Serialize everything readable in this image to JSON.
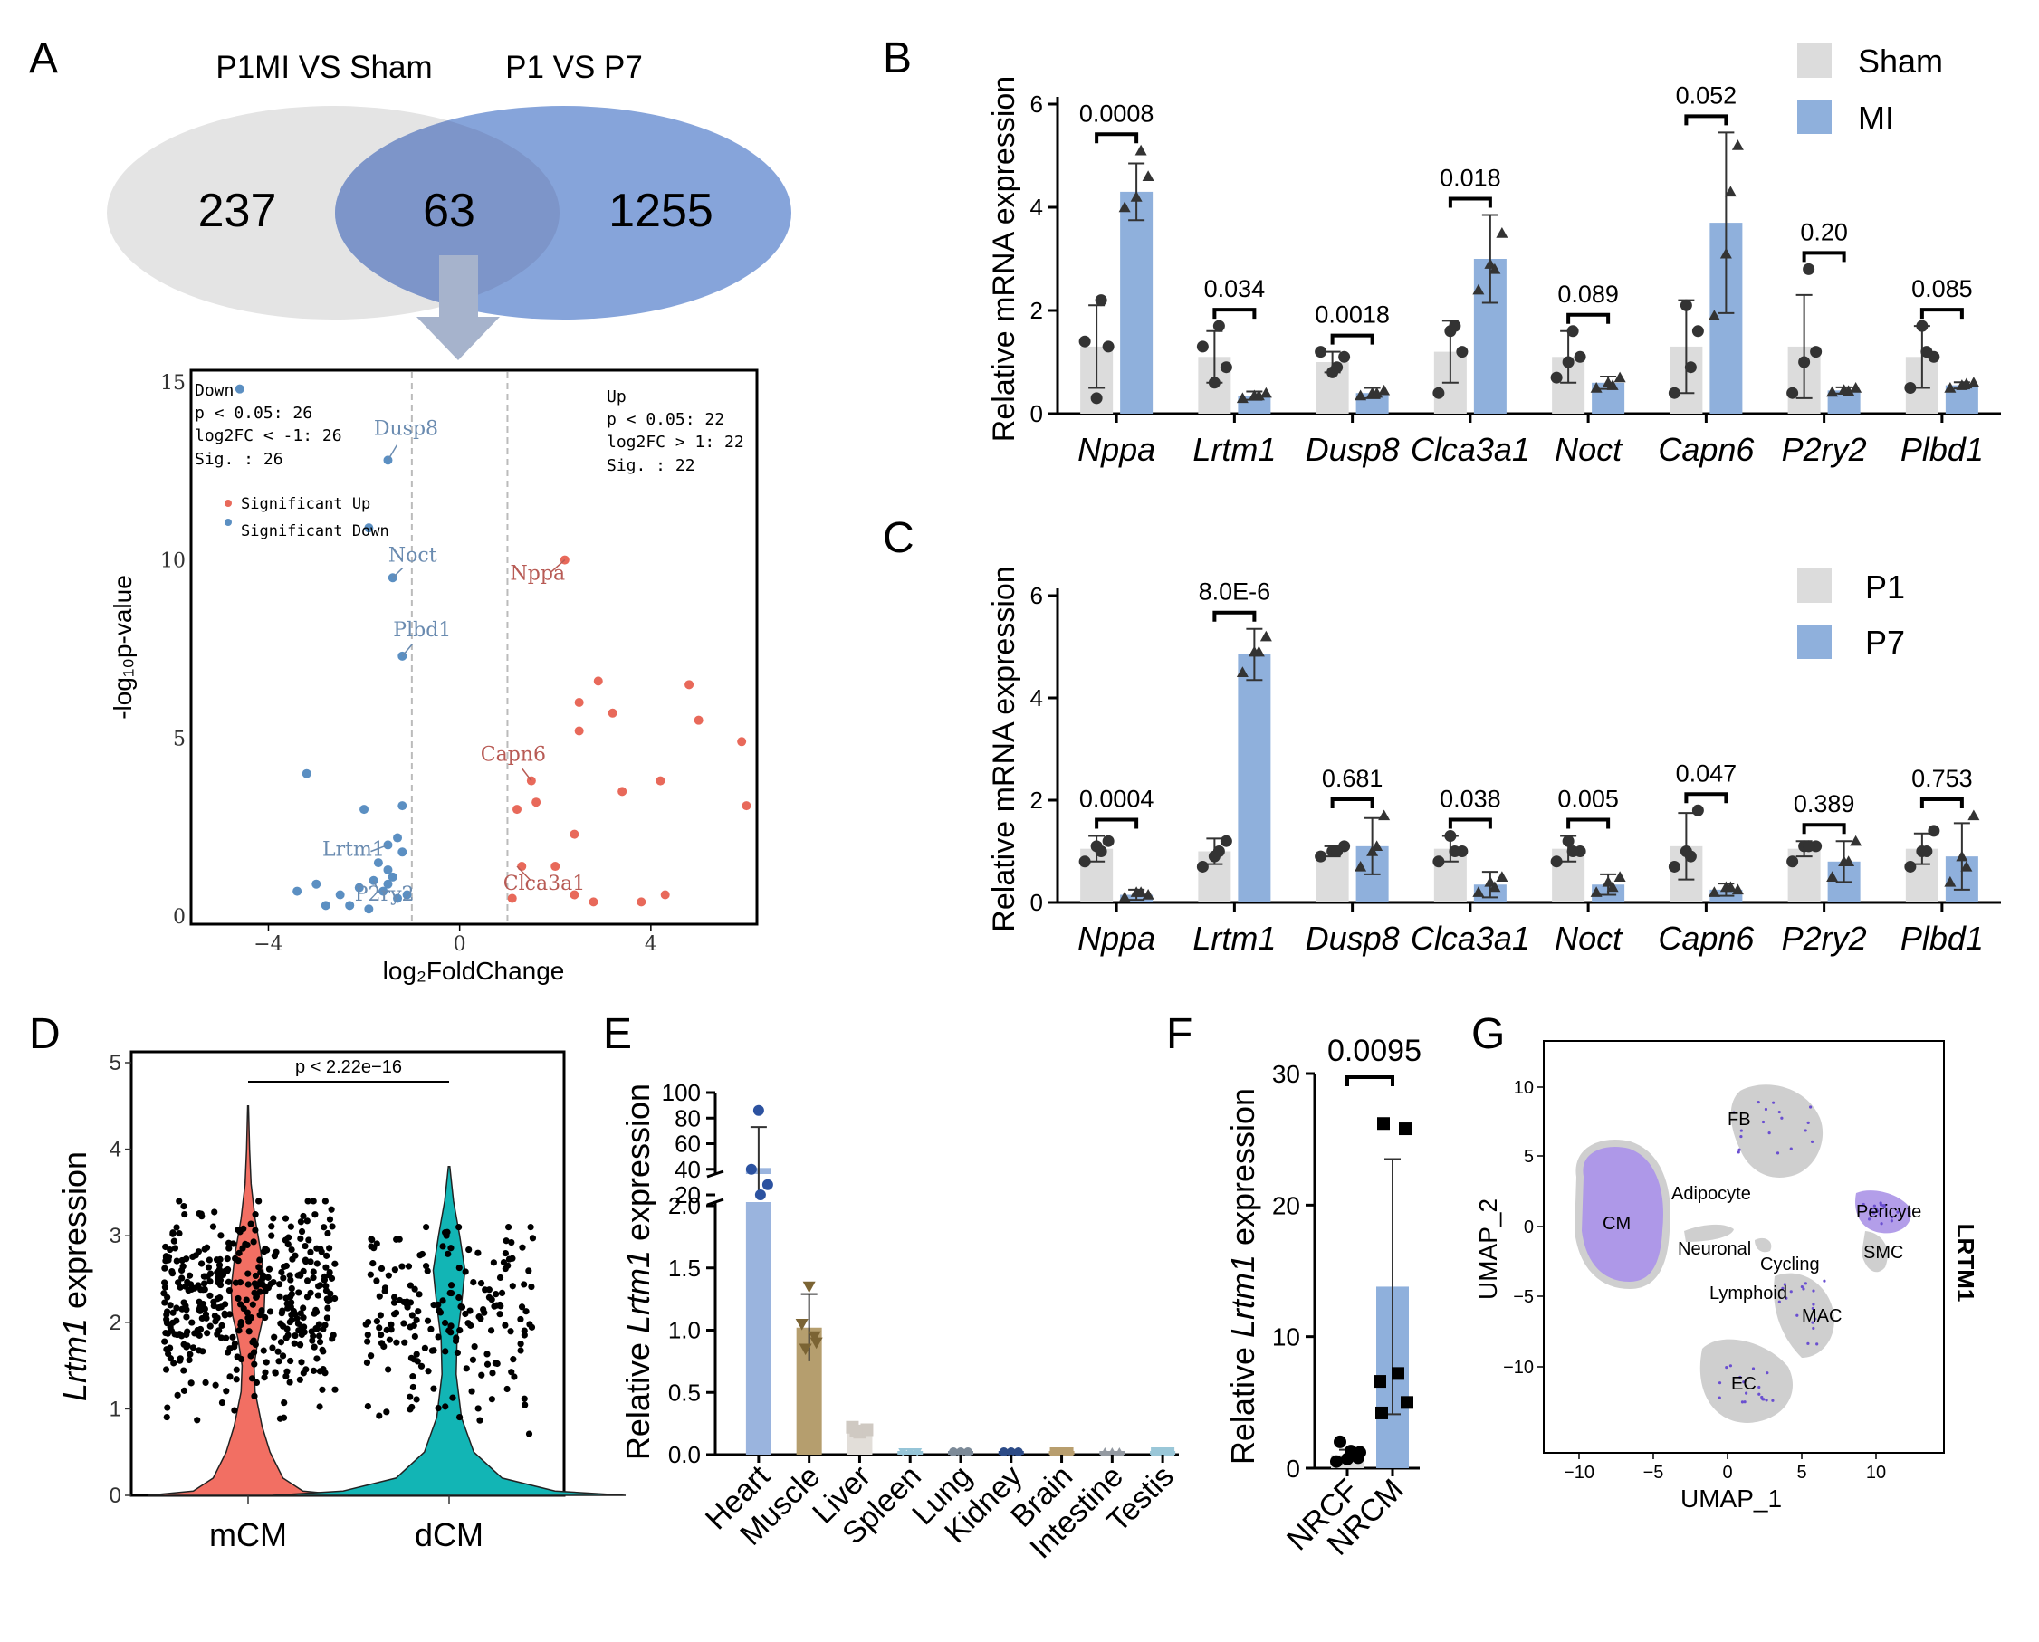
{
  "colors": {
    "grey_bar": "#dcdcdc",
    "blue_bar": "#8fb0dc",
    "venn_left": "#e4e4e4",
    "venn_right": "#7f9fd8",
    "venn_overlap": "#7d95c9",
    "arrow": "#a6b3cc",
    "volcano_up": "#e8695a",
    "volcano_down": "#5b8fc2",
    "volcano_label_up": "#b85b55",
    "volcano_label_down": "#6a8bb0",
    "violin_mcm": "#f26f63",
    "violin_dcm": "#12b5b5",
    "umap_grey": "#cfcfcf",
    "umap_purple": "#9a7ee2"
  },
  "panel_letters": [
    "A",
    "B",
    "C",
    "D",
    "E",
    "F",
    "G"
  ],
  "chart_data": [
    {
      "panel": "A-venn",
      "type": "other",
      "sets": [
        {
          "name": "P1MI VS Sham",
          "unique": "237"
        },
        {
          "name": "P1 VS P7",
          "unique": "1255"
        }
      ],
      "overlap": "63"
    },
    {
      "panel": "A-volcano",
      "type": "scatter",
      "xlabel": "log₂FoldChange",
      "ylabel": "-log₁₀p-value",
      "xlim": [
        -5.6,
        6.2
      ],
      "ylim": [
        -0.2,
        15.3
      ],
      "x_ticks": [
        -4,
        0,
        4
      ],
      "x_tick_labels": [
        "−4",
        "0",
        "4"
      ],
      "y_ticks": [
        0,
        5,
        10,
        15
      ],
      "y_tick_labels": [
        "0",
        "5",
        "10",
        "15"
      ],
      "threshold_lines_x": [
        -1,
        1
      ],
      "down_box": [
        "Down",
        "p < 0.05: 26",
        "log2FC < -1: 26",
        "Sig.  : 26"
      ],
      "up_box": [
        "Up",
        "p < 0.05: 22",
        "log2FC > 1: 22",
        "Sig.  : 22"
      ],
      "legend": [
        "Significant Up",
        "Significant Down"
      ],
      "up_points": [
        [
          2.2,
          10
        ],
        [
          1.5,
          3.8
        ],
        [
          1.2,
          3.0
        ],
        [
          1.6,
          3.2
        ],
        [
          2.5,
          6.0
        ],
        [
          2.9,
          6.6
        ],
        [
          2.5,
          5.2
        ],
        [
          3.2,
          5.7
        ],
        [
          4.8,
          6.5
        ],
        [
          5.0,
          5.5
        ],
        [
          5.9,
          4.9
        ],
        [
          6.0,
          3.1
        ],
        [
          4.2,
          3.8
        ],
        [
          3.4,
          3.5
        ],
        [
          2.4,
          2.3
        ],
        [
          2.0,
          1.4
        ],
        [
          1.3,
          1.4
        ],
        [
          1.1,
          0.5
        ],
        [
          2.8,
          0.4
        ],
        [
          3.8,
          0.4
        ],
        [
          4.3,
          0.6
        ],
        [
          2.4,
          0.6
        ]
      ],
      "down_points": [
        [
          -4.6,
          14.8
        ],
        [
          -1.5,
          12.8
        ],
        [
          -1.9,
          10.9
        ],
        [
          -1.4,
          9.5
        ],
        [
          -1.2,
          7.3
        ],
        [
          -3.2,
          4.0
        ],
        [
          -2.0,
          3.0
        ],
        [
          -1.2,
          3.1
        ],
        [
          -1.3,
          2.2
        ],
        [
          -1.5,
          2.0
        ],
        [
          -1.7,
          1.5
        ],
        [
          -1.5,
          1.3
        ],
        [
          -1.8,
          1.0
        ],
        [
          -2.1,
          0.8
        ],
        [
          -2.5,
          0.6
        ],
        [
          -3.0,
          0.9
        ],
        [
          -3.4,
          0.7
        ],
        [
          -1.6,
          0.7
        ],
        [
          -1.9,
          0.2
        ],
        [
          -1.2,
          1.8
        ],
        [
          -1.4,
          1.1
        ],
        [
          -2.3,
          0.3
        ],
        [
          -1.1,
          0.6
        ],
        [
          -1.3,
          0.5
        ],
        [
          -2.8,
          0.3
        ],
        [
          -1.5,
          0.9
        ]
      ],
      "labels": [
        {
          "text": "Dusp8",
          "x": -1.5,
          "y": 12.8,
          "dir": "down"
        },
        {
          "text": "Noct",
          "x": -1.4,
          "y": 9.5,
          "dir": "down"
        },
        {
          "text": "Plbd1",
          "x": -1.2,
          "y": 7.3,
          "dir": "down"
        },
        {
          "text": "Lrtm1",
          "x": -1.5,
          "y": 2.0,
          "dir": "down"
        },
        {
          "text": "P2ry2",
          "x": -1.8,
          "y": 1.0,
          "dir": "down"
        },
        {
          "text": "Nppa",
          "x": 2.2,
          "y": 10,
          "dir": "up"
        },
        {
          "text": "Capn6",
          "x": 1.5,
          "y": 3.8,
          "dir": "up"
        },
        {
          "text": "Clca3a1",
          "x": 1.2,
          "y": 1.4,
          "dir": "up"
        }
      ]
    },
    {
      "panel": "B",
      "type": "bar",
      "ylabel": "Relative mRNA expression",
      "ylim": [
        0,
        6
      ],
      "y_ticks": [
        0,
        2,
        4,
        6
      ],
      "categories": [
        "Nppa",
        "Lrtm1",
        "Dusp8",
        "Clca3a1",
        "Noct",
        "Capn6",
        "P2ry2",
        "Plbd1"
      ],
      "series": [
        {
          "name": "Sham",
          "values": [
            1.3,
            1.1,
            1.0,
            1.2,
            1.1,
            1.3,
            1.3,
            1.1
          ],
          "sd": [
            0.8,
            0.5,
            0.2,
            0.6,
            0.5,
            0.9,
            1.0,
            0.6
          ],
          "points": [
            [
              1.4,
              0.3,
              1.3,
              2.2
            ],
            [
              1.3,
              0.6,
              0.9,
              1.7
            ],
            [
              1.2,
              0.8,
              1.1,
              0.9
            ],
            [
              0.4,
              1.6,
              1.2,
              1.7
            ],
            [
              0.7,
              1.0,
              1.1,
              1.6
            ],
            [
              0.4,
              2.1,
              1.6,
              0.9
            ],
            [
              0.4,
              1.0,
              1.2,
              2.8
            ],
            [
              0.5,
              1.7,
              1.1,
              1.2
            ]
          ]
        },
        {
          "name": "MI",
          "values": [
            4.3,
            0.35,
            0.4,
            3.0,
            0.6,
            3.7,
            0.45,
            0.55
          ],
          "sd": [
            0.55,
            0.08,
            0.1,
            0.85,
            0.12,
            1.75,
            0.06,
            0.06
          ],
          "points": [
            [
              4.0,
              4.2,
              4.6,
              5.1
            ],
            [
              0.3,
              0.35,
              0.4,
              0.35
            ],
            [
              0.35,
              0.4,
              0.45,
              0.4
            ],
            [
              2.4,
              2.9,
              3.5,
              2.8
            ],
            [
              0.5,
              0.6,
              0.7,
              0.55
            ],
            [
              1.9,
              3.1,
              5.2,
              4.3
            ],
            [
              0.42,
              0.46,
              0.5,
              0.44
            ],
            [
              0.5,
              0.55,
              0.6,
              0.58
            ]
          ]
        }
      ],
      "p_values": [
        "0.0008",
        "0.034",
        "0.0018",
        "0.018",
        "0.089",
        "0.052",
        "0.20",
        "0.085"
      ]
    },
    {
      "panel": "C",
      "type": "bar",
      "ylabel": "Relative mRNA expression",
      "ylim": [
        0,
        6
      ],
      "y_ticks": [
        0,
        2,
        4,
        6
      ],
      "categories": [
        "Nppa",
        "Lrtm1",
        "Dusp8",
        "Clca3a1",
        "Noct",
        "Capn6",
        "P2ry2",
        "Plbd1"
      ],
      "series": [
        {
          "name": "P1",
          "values": [
            1.05,
            1.0,
            1.0,
            1.05,
            1.05,
            1.1,
            1.05,
            1.05
          ],
          "sd": [
            0.25,
            0.25,
            0.1,
            0.25,
            0.25,
            0.65,
            0.15,
            0.3
          ],
          "points": [
            [
              0.8,
              1.1,
              1.2,
              1.0
            ],
            [
              0.7,
              0.9,
              1.2,
              1.0
            ],
            [
              0.9,
              1.0,
              1.1,
              1.0
            ],
            [
              0.8,
              1.3,
              1.0,
              1.0
            ],
            [
              0.8,
              1.2,
              1.0,
              1.0
            ],
            [
              0.7,
              1.0,
              1.8,
              0.9
            ],
            [
              0.8,
              1.1,
              1.1,
              1.1
            ],
            [
              0.7,
              1.0,
              1.4,
              1.0
            ]
          ]
        },
        {
          "name": "P7",
          "values": [
            0.15,
            4.85,
            1.1,
            0.35,
            0.35,
            0.25,
            0.8,
            0.9
          ],
          "sd": [
            0.1,
            0.5,
            0.55,
            0.25,
            0.2,
            0.12,
            0.4,
            0.65
          ],
          "points": [
            [
              0.1,
              0.2,
              0.15,
              0.2
            ],
            [
              4.5,
              4.9,
              5.2,
              4.9
            ],
            [
              0.7,
              1.0,
              1.7,
              1.1
            ],
            [
              0.2,
              0.4,
              0.5,
              0.3
            ],
            [
              0.2,
              0.4,
              0.5,
              0.3
            ],
            [
              0.2,
              0.3,
              0.25,
              0.3
            ],
            [
              0.5,
              0.8,
              1.2,
              0.8
            ],
            [
              0.4,
              0.9,
              1.7,
              0.7
            ]
          ]
        }
      ],
      "p_values": [
        "0.0004",
        "8.0E-6",
        "0.681",
        "0.038",
        "0.005",
        "0.047",
        "0.389",
        "0.753"
      ]
    },
    {
      "panel": "D",
      "type": "other",
      "ylabel": "Lrtm1 expression",
      "ylabel_parts": [
        "Lrtm1",
        " expression"
      ],
      "ylim": [
        0,
        5
      ],
      "y_ticks": [
        0,
        1,
        2,
        3,
        4,
        5
      ],
      "groups": [
        "mCM",
        "dCM"
      ],
      "annotation": "p < 2.22e−16"
    },
    {
      "panel": "E",
      "type": "bar",
      "ylabel": "Relative Lrtm1 expression",
      "ylabel_parts": [
        "Relative ",
        "Lrtm1",
        " expression"
      ],
      "y_ticks_lower": [
        "0.0",
        "0.5",
        "1.0",
        "1.5",
        "2.0"
      ],
      "y_ticks_upper": [
        "20",
        "40",
        "60",
        "80",
        "100"
      ],
      "categories": [
        "Heart",
        "Muscle",
        "Liver",
        "Spleen",
        "Lung",
        "Kidney",
        "Brain",
        "Intestine",
        "Testis"
      ],
      "values": [
        41,
        1.02,
        0.2,
        0.005,
        0.003,
        0.004,
        0.006,
        0.002,
        0.004
      ],
      "sd": [
        32,
        0.27,
        0.03,
        0.003,
        0.002,
        0.002,
        0.003,
        0.002,
        0.002
      ],
      "heart_points": [
        86,
        40,
        28,
        18
      ],
      "bar_colors": [
        "#9ab4de",
        "#b59e6e",
        "#e2ded9",
        "#96c5d8",
        "#7c8a98",
        "#2c4b87",
        "#b89e6e",
        "#949aa2",
        "#9ac7d8"
      ]
    },
    {
      "panel": "F",
      "type": "bar",
      "ylabel": "Relative Lrtm1 expression",
      "ylabel_parts": [
        "Relative ",
        "Lrtm1",
        " expression"
      ],
      "ylim": [
        0,
        30
      ],
      "y_ticks": [
        0,
        10,
        20,
        30
      ],
      "categories": [
        "NRCF",
        "NRCM"
      ],
      "values": [
        1.0,
        13.8
      ],
      "sd": [
        0.4,
        9.7
      ],
      "points": [
        [
          2.0,
          1.3,
          0.8,
          0.5,
          0.7,
          1.2
        ],
        [
          26.2,
          25.8,
          7.2,
          5.0,
          4.2,
          6.6
        ]
      ],
      "p_value": "0.0095"
    },
    {
      "panel": "G",
      "type": "scatter",
      "xlabel": "UMAP_1",
      "ylabel": "UMAP_2",
      "x_ticks": [
        "−10",
        "−5",
        "0",
        "5",
        "10"
      ],
      "y_ticks": [
        "10",
        "5",
        "0",
        "−5",
        "−10"
      ],
      "gene": "LRTM1",
      "clusters": [
        "CM",
        "FB",
        "Adipocyte",
        "Pericyte",
        "SMC",
        "Neuronal",
        "Cycling",
        "Lymphoid",
        "MAC",
        "EC"
      ]
    }
  ]
}
